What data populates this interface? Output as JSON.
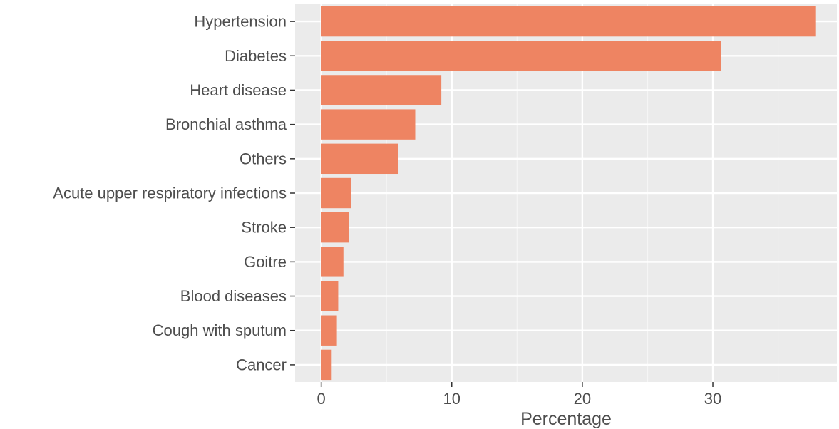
{
  "chart_data": {
    "type": "bar",
    "orientation": "horizontal",
    "categories": [
      "Hypertension",
      "Diabetes",
      "Heart disease",
      "Bronchial asthma",
      "Others",
      "Acute upper respiratory infections",
      "Stroke",
      "Goitre",
      "Blood diseases",
      "Cough with sputum",
      "Cancer"
    ],
    "values": [
      37.9,
      30.6,
      9.2,
      7.2,
      5.9,
      2.3,
      2.1,
      1.7,
      1.3,
      1.2,
      0.8
    ],
    "xlabel": "Percentage",
    "ylabel": "",
    "xlim": [
      -2,
      39.5
    ],
    "xticks": [
      0,
      10,
      20,
      30
    ],
    "xtick_labels": [
      "0",
      "10",
      "20",
      "30"
    ],
    "grid": true,
    "colors": {
      "bar": "#EE8462",
      "panel_background": "#EBEBEB",
      "grid_major": "#FFFFFF",
      "grid_minor": "#F5F5F5",
      "text": "#4D4D4D",
      "tick": "#333333"
    }
  }
}
